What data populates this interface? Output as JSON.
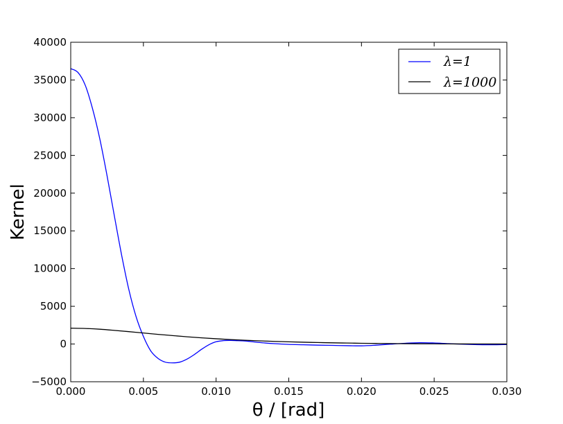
{
  "chart_data": {
    "type": "line",
    "title": "",
    "xlabel": "θ  /  [rad]",
    "ylabel": "Kernel",
    "xlim": [
      0.0,
      0.03
    ],
    "ylim": [
      -5000,
      40000
    ],
    "xticks": [
      "0.000",
      "0.005",
      "0.010",
      "0.015",
      "0.020",
      "0.025",
      "0.030"
    ],
    "yticks": [
      "−5000",
      "0",
      "5000",
      "10000",
      "15000",
      "20000",
      "25000",
      "30000",
      "35000",
      "40000"
    ],
    "grid": false,
    "legend_position": "top-right",
    "series": [
      {
        "name": "λ=1",
        "color": "#0000ff",
        "x": [
          0.0,
          0.0005,
          0.001,
          0.0015,
          0.002,
          0.0025,
          0.003,
          0.0035,
          0.004,
          0.0045,
          0.005,
          0.0055,
          0.006,
          0.0065,
          0.007,
          0.0075,
          0.008,
          0.0085,
          0.009,
          0.0095,
          0.01,
          0.0105,
          0.011,
          0.0115,
          0.012,
          0.013,
          0.014,
          0.015,
          0.016,
          0.017,
          0.018,
          0.019,
          0.02,
          0.021,
          0.022,
          0.023,
          0.024,
          0.025,
          0.026,
          0.027,
          0.028,
          0.029,
          0.03
        ],
        "y": [
          36500,
          36000,
          34300,
          31200,
          27200,
          22300,
          17000,
          11800,
          7200,
          3600,
          1000,
          -900,
          -1900,
          -2400,
          -2500,
          -2400,
          -2000,
          -1400,
          -700,
          -100,
          300,
          450,
          480,
          440,
          400,
          200,
          50,
          -50,
          -100,
          -150,
          -180,
          -220,
          -240,
          -150,
          -20,
          100,
          180,
          140,
          50,
          -30,
          -80,
          -100,
          -60
        ]
      },
      {
        "name": "λ=1000",
        "color": "#000000",
        "x": [
          0.0,
          0.001,
          0.002,
          0.003,
          0.004,
          0.005,
          0.006,
          0.007,
          0.008,
          0.009,
          0.01,
          0.011,
          0.012,
          0.013,
          0.014,
          0.015,
          0.016,
          0.017,
          0.018,
          0.019,
          0.02,
          0.021,
          0.022,
          0.023,
          0.024,
          0.025,
          0.026,
          0.027,
          0.028,
          0.029,
          0.03
        ],
        "y": [
          2100,
          2060,
          1960,
          1810,
          1640,
          1460,
          1280,
          1120,
          960,
          820,
          700,
          590,
          500,
          420,
          350,
          290,
          240,
          200,
          160,
          130,
          100,
          80,
          60,
          45,
          35,
          25,
          15,
          10,
          5,
          0,
          0
        ]
      }
    ]
  }
}
